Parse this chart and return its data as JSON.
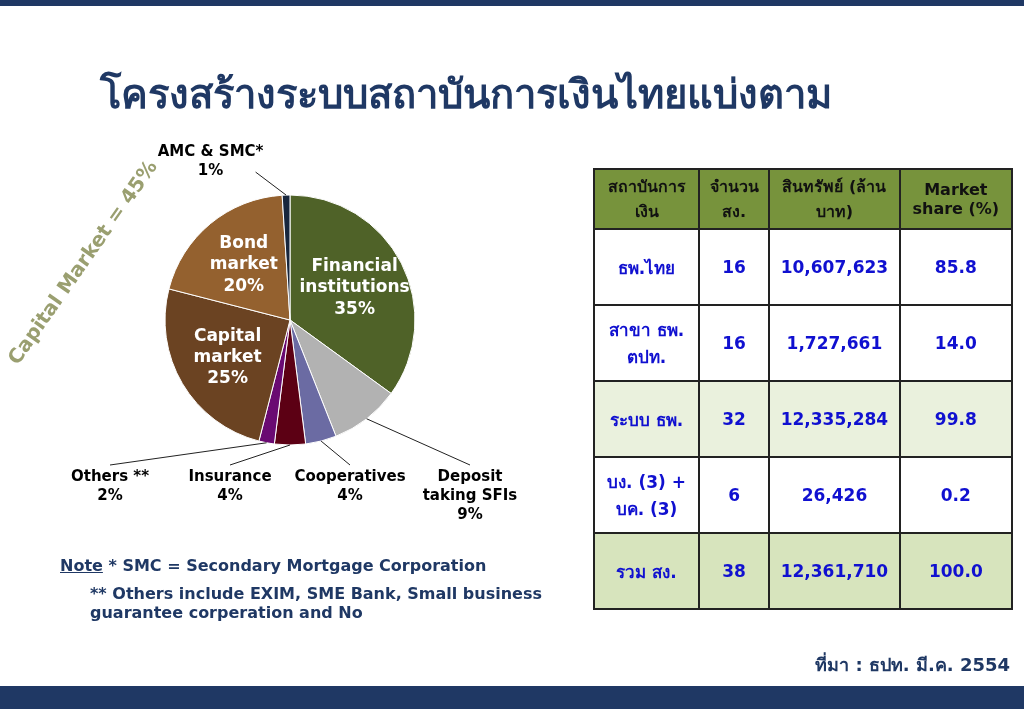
{
  "chart_data": [
    {
      "type": "pie",
      "title": "โครงสร้างระบบสถาบันการเงินไทยแบ่งตาม",
      "categories": [
        "Financial institutions",
        "Deposit taking SFIs",
        "Cooperatives",
        "Insurance",
        "Others **",
        "Capital market",
        "Bond market",
        "AMC & SMC*"
      ],
      "values": [
        35,
        9,
        4,
        4,
        2,
        25,
        20,
        1
      ],
      "colors": [
        "#4f6228",
        "#b2b2b2",
        "#6b6ba3",
        "#5c0014",
        "#6a0a72",
        "#6b4322",
        "#94612f",
        "#17263d"
      ],
      "value_labels": [
        "35%",
        "9%",
        "4%",
        "4%",
        "2%",
        "25%",
        "20%",
        "1%"
      ],
      "annotations": [
        "Capital Market = 45%",
        "Note * SMC = Secondary Mortgage Corporation",
        "** Others include EXIM, SME Bank, Small business guarantee corperation and No"
      ]
    },
    {
      "type": "other",
      "categories": [
        "สถาบันการเงิน",
        "จำนวน สง.",
        "สินทรัพย์ (ล้านบาท)",
        "Market share (%)"
      ],
      "y_categories": [
        "ธพ.ไทย",
        "สาขา ธพ. ตปท.",
        "ระบบ ธพ.",
        "บง. (3) + บค. (3)",
        "รวม สง."
      ],
      "cell_labels": [
        [
          "16",
          "10,607,623",
          "85.8"
        ],
        [
          "16",
          "1,727,661",
          "14.0"
        ],
        [
          "32",
          "12,335,284",
          "99.8"
        ],
        [
          "6",
          "26,426",
          "0.2"
        ],
        [
          "38",
          "12,361,710",
          "100.0"
        ]
      ],
      "annotations": [
        "ที่มา : ธปท. มี.ค. 2554"
      ]
    }
  ]
}
